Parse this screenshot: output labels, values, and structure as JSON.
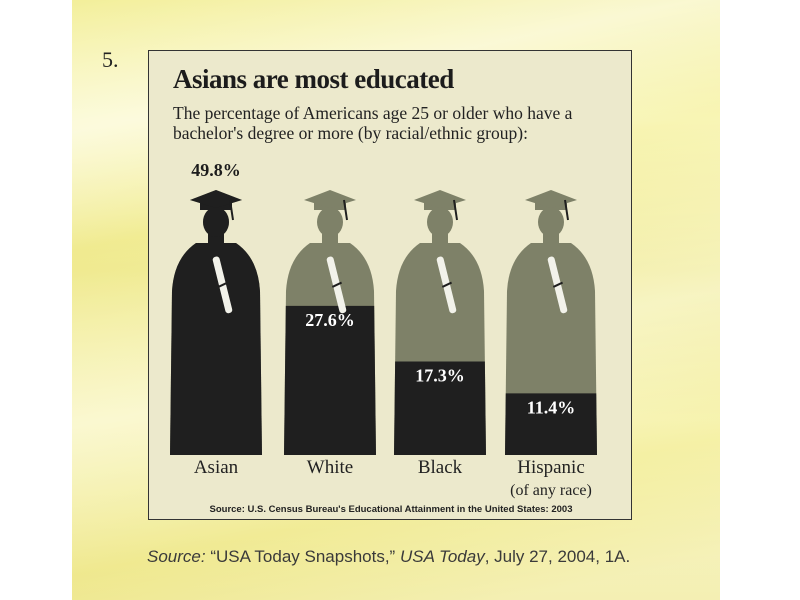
{
  "item_number": "5.",
  "chart_data": {
    "type": "bar",
    "title": "Asians are most educated",
    "subtitle": "The percentage of Americans age 25 or older who have a bachelor's degree or more (by racial/ethnic group):",
    "categories": [
      "Asian",
      "White",
      "Black",
      "Hispanic"
    ],
    "category_notes": [
      "",
      "",
      "",
      "(of any race)"
    ],
    "values": [
      49.8,
      27.6,
      17.3,
      11.4
    ],
    "value_labels": [
      "49.8%",
      "27.6%",
      "17.3%",
      "11.4%"
    ],
    "ylim": [
      0,
      49.8
    ],
    "source": "Source: U.S. Census Bureau's Educational Attainment in the United States: 2003",
    "colors": {
      "filled": "#1f1f1f",
      "unfilled": "#7e8168",
      "diploma": "#f2f2ea"
    }
  },
  "page_source": {
    "prefix": "Source:",
    "quote": " “USA Today Snapshots,” ",
    "publication": "USA Today",
    "details": ", July 27, 2004, 1A."
  }
}
